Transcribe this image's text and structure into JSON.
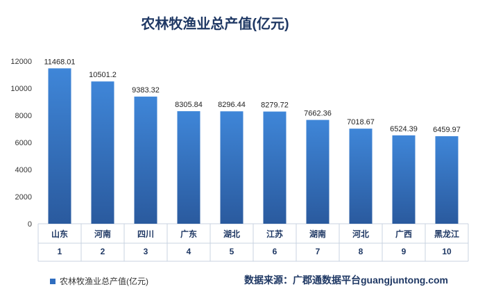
{
  "chart_data": {
    "type": "bar",
    "title": "农林牧渔业总产值(亿元)",
    "categories": [
      "山东",
      "河南",
      "四川",
      "广东",
      "湖北",
      "江苏",
      "湖南",
      "河北",
      "广西",
      "黑龙江"
    ],
    "ranks": [
      "1",
      "2",
      "3",
      "4",
      "5",
      "6",
      "7",
      "8",
      "9",
      "10"
    ],
    "series": [
      {
        "name": "农林牧渔业总产值(亿元)",
        "values": [
          11468.01,
          10501.2,
          9383.32,
          8305.84,
          8296.44,
          8279.72,
          7662.36,
          7018.67,
          6524.39,
          6459.97
        ],
        "labels": [
          "11468.01",
          "10501.2",
          "9383.32",
          "8305.84",
          "8296.44",
          "8279.72",
          "7662.36",
          "7018.67",
          "6524.39",
          "6459.97"
        ]
      }
    ],
    "ylim": [
      0,
      12000
    ],
    "yticks": [
      "0",
      "2000",
      "4000",
      "6000",
      "8000",
      "10000",
      "12000"
    ],
    "grid": false,
    "legend_position": "bottom-left",
    "colors": {
      "bar_top": "#3f86d8",
      "bar_bottom": "#2a5a9e",
      "title": "#1f3864"
    }
  },
  "source_text": "数据来源：广郡通数据平台guangjuntong.com"
}
